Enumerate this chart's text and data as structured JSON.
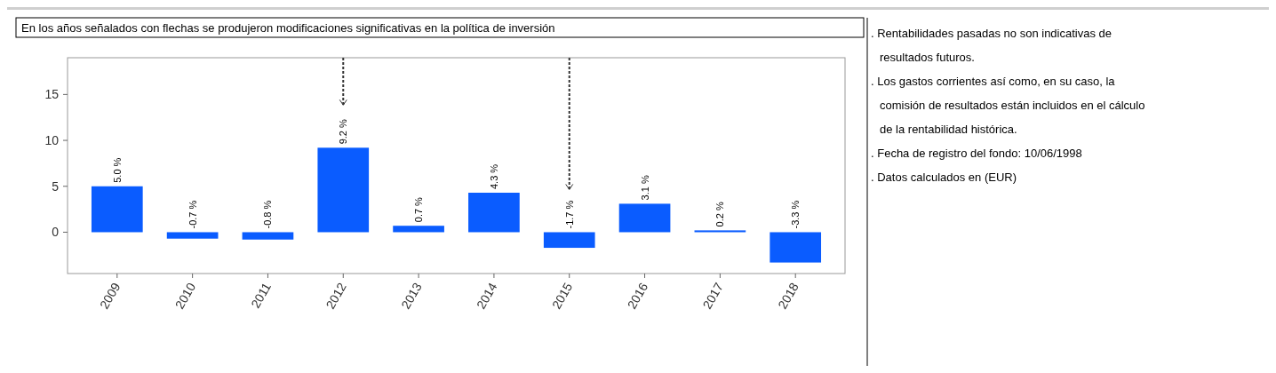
{
  "chart_data": {
    "type": "bar",
    "title": "En los años señalados con flechas se produjeron modificaciones significativas en la política de inversión",
    "categories": [
      "2009",
      "2010",
      "2011",
      "2012",
      "2013",
      "2014",
      "2015",
      "2016",
      "2017",
      "2018"
    ],
    "series": [
      {
        "color": "#0a5cff",
        "values": [
          5.0,
          -0.7,
          -0.8,
          9.2,
          0.7,
          4.3,
          -1.7,
          3.1,
          0.2,
          -3.3
        ],
        "value_labels": [
          "5.0 %",
          "-0.7 %",
          "-0.8 %",
          "9.2 %",
          "0.7 %",
          "4.3 %",
          "-1.7 %",
          "3.1 %",
          "0.2 %",
          "-3.3 %"
        ]
      }
    ],
    "ylim": [
      -4.5,
      19
    ],
    "yticks": [
      0,
      5,
      10,
      15
    ],
    "grid": false,
    "ref_lines": [
      {
        "axis": "x",
        "value": "2012",
        "line_style": "dashed"
      },
      {
        "axis": "x",
        "value": "2015",
        "line_style": "dashed"
      }
    ],
    "annotations": [
      ". Rentabilidades pasadas no son indicativas de resultados futuros.",
      ". Los gastos corrientes así como, en su caso, la comisión de resultados están incluidos en el cálculo de la rentabilidad histórica.",
      ". Fecha de registro del fondo: 10/06/1998",
      ". Datos calculados en (EUR)"
    ]
  }
}
